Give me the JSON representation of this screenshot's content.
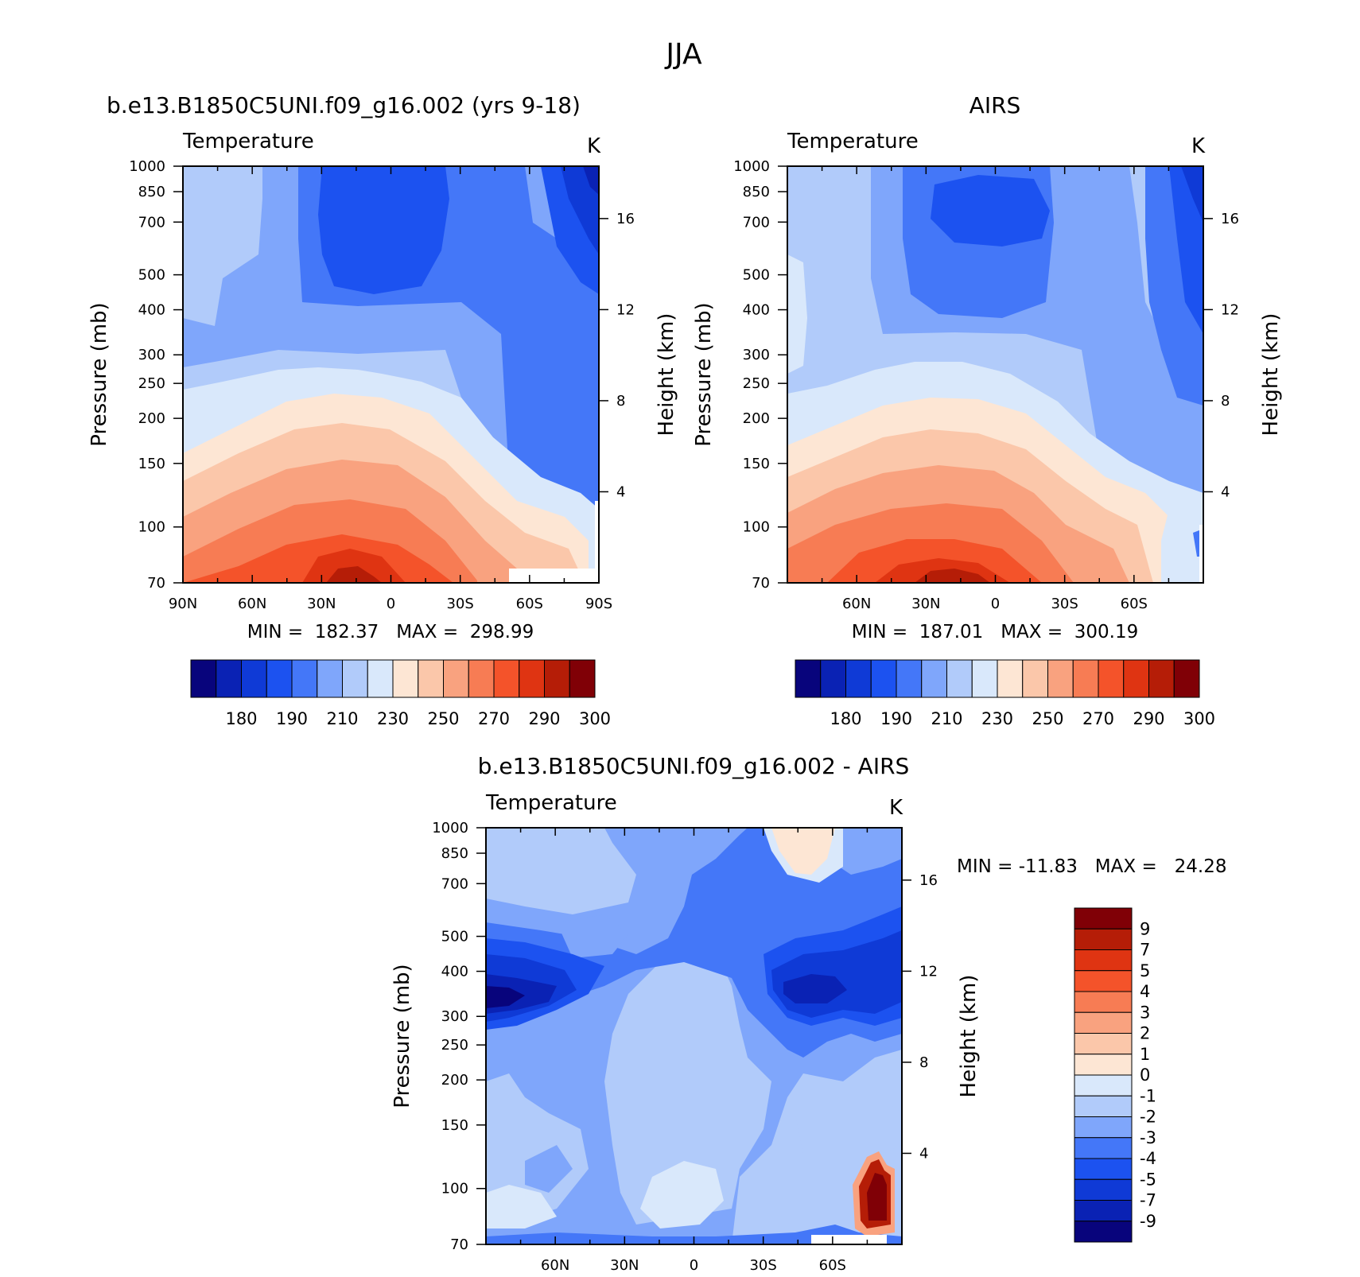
{
  "figure_title": "JJA",
  "chart_data": [
    {
      "type": "contour",
      "title": "b.e13.B1850C5UNI.f09_g16.002 (yrs 9-18)",
      "subtitle": "Temperature",
      "units": "K",
      "xlabel": "",
      "ylabel": "Pressure (mb)",
      "ylabel_right": "Height (km)",
      "x_ticks": [
        "90N",
        "60N",
        "30N",
        "0",
        "30S",
        "60S",
        "90S"
      ],
      "y_ticks": [
        "70",
        "100",
        "150",
        "200",
        "250",
        "300",
        "400",
        "500",
        "700",
        "850",
        "1000"
      ],
      "y_ticks_right": [
        "16",
        "12",
        "8",
        "4"
      ],
      "ylim": [
        1000,
        70
      ],
      "stats": "MIN =  182.37   MAX =  298.99",
      "min": 182.37,
      "max": 298.99,
      "levels": [
        175,
        180,
        185,
        190,
        200,
        210,
        220,
        230,
        240,
        250,
        260,
        270,
        280,
        290,
        295,
        300
      ],
      "colorbar_labels": [
        "180",
        "190",
        "210",
        "230",
        "250",
        "270",
        "290",
        "300"
      ]
    },
    {
      "type": "contour",
      "title": "AIRS",
      "subtitle": "Temperature",
      "units": "K",
      "xlabel": "",
      "ylabel": "Pressure (mb)",
      "ylabel_right": "Height (km)",
      "x_ticks": [
        "60N",
        "30N",
        "0",
        "30S",
        "60S"
      ],
      "y_ticks": [
        "70",
        "100",
        "150",
        "200",
        "250",
        "300",
        "400",
        "500",
        "700",
        "850",
        "1000"
      ],
      "y_ticks_right": [
        "16",
        "12",
        "8",
        "4"
      ],
      "ylim": [
        1000,
        70
      ],
      "stats": "MIN =  187.01   MAX =  300.19",
      "min": 187.01,
      "max": 300.19,
      "levels": [
        175,
        180,
        185,
        190,
        200,
        210,
        220,
        230,
        240,
        250,
        260,
        270,
        280,
        290,
        295,
        300
      ],
      "colorbar_labels": [
        "180",
        "190",
        "210",
        "230",
        "250",
        "270",
        "290",
        "300"
      ]
    },
    {
      "type": "contour",
      "title": "b.e13.B1850C5UNI.f09_g16.002 - AIRS",
      "subtitle": "Temperature",
      "units": "K",
      "xlabel": "",
      "ylabel": "Pressure (mb)",
      "ylabel_right": "Height (km)",
      "x_ticks": [
        "60N",
        "30N",
        "0",
        "30S",
        "60S"
      ],
      "y_ticks": [
        "70",
        "100",
        "150",
        "200",
        "250",
        "300",
        "400",
        "500",
        "700",
        "850",
        "1000"
      ],
      "y_ticks_right": [
        "16",
        "12",
        "8",
        "4"
      ],
      "ylim": [
        1000,
        70
      ],
      "stats": "MIN = -11.83   MAX =   24.28",
      "min": -11.83,
      "max": 24.28,
      "levels": [
        -9,
        -7,
        -5,
        -4,
        -3,
        -2,
        -1,
        0,
        1,
        2,
        3,
        4,
        5,
        7,
        9
      ],
      "colorbar_labels": [
        "9",
        "7",
        "5",
        "4",
        "3",
        "2",
        "1",
        "0",
        "-1",
        "-2",
        "-3",
        "-4",
        "-5",
        "-7",
        "-9"
      ]
    }
  ],
  "colors": {
    "abs_scale": [
      "#08047c",
      "#0a22b4",
      "#0f3ad6",
      "#1c52f0",
      "#4477f8",
      "#7fa6fb",
      "#b1cbfa",
      "#d9e8fb",
      "#fde6d4",
      "#fbc7aa",
      "#f9a27f",
      "#f77c54",
      "#f4532a",
      "#df3412",
      "#b51d07",
      "#800006"
    ],
    "diff_scale": [
      "#08047c",
      "#0a22b4",
      "#0f3ad6",
      "#1c52f0",
      "#4477f8",
      "#7fa6fb",
      "#b1cbfa",
      "#d9e8fb",
      "#fde6d4",
      "#fbc7aa",
      "#f9a27f",
      "#f77c54",
      "#f4532a",
      "#df3412",
      "#b51d07",
      "#800006"
    ]
  }
}
